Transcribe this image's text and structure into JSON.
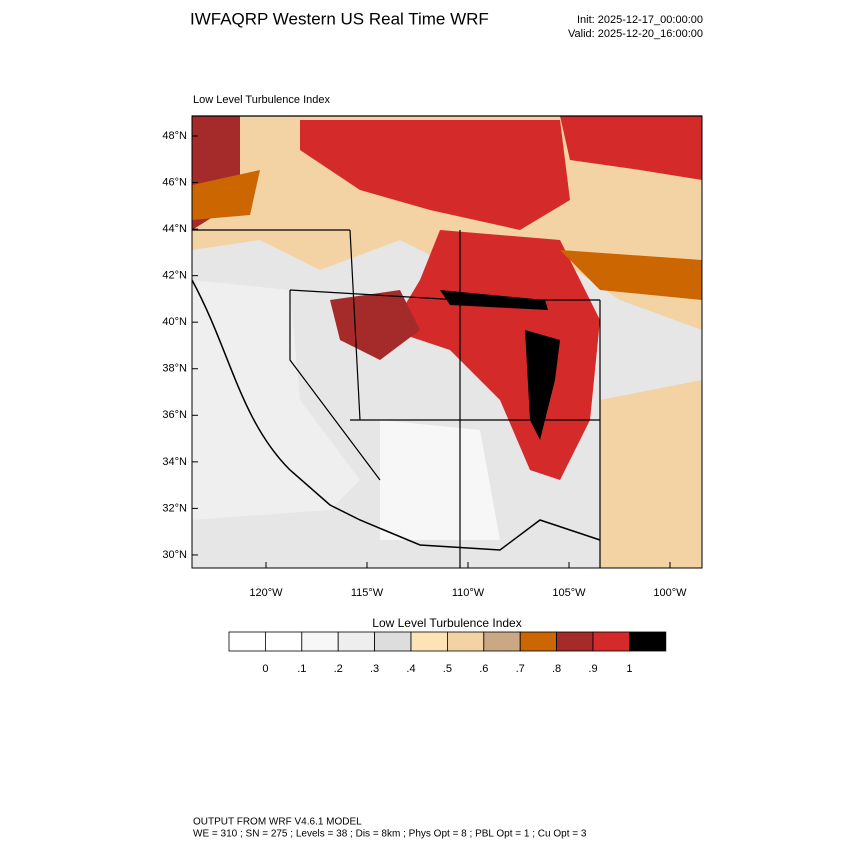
{
  "header": {
    "title": "IWFAQRP Western US Real Time WRF",
    "init": "Init: 2025-12-17_00:00:00",
    "valid": "Valid: 2025-12-20_16:00:00"
  },
  "map": {
    "title": "Low Level Turbulence Index",
    "lat_labels": [
      "48°N",
      "46°N",
      "44°N",
      "42°N",
      "40°N",
      "38°N",
      "36°N",
      "34°N",
      "32°N",
      "30°N"
    ],
    "lon_labels": [
      "120°W",
      "115°W",
      "110°W",
      "105°W",
      "100°W"
    ]
  },
  "colorbar": {
    "title": "Low Level Turbulence Index",
    "colors": [
      "#ffffff",
      "#f7f7f7",
      "#eeeeee",
      "#dddddd",
      "#fde4b6",
      "#f3d2a4",
      "#c9a883",
      "#cc6600",
      "#a52a2a",
      "#d42a2a",
      "#000000"
    ],
    "first_color": "#ffffff",
    "labels": [
      "0",
      ".1",
      ".2",
      ".3",
      ".4",
      ".5",
      ".6",
      ".7",
      ".8",
      ".9",
      "1"
    ]
  },
  "footer": {
    "line1": "OUTPUT FROM WRF V4.6.1 MODEL",
    "line2": "WE = 310 ; SN = 275 ; Levels = 38 ; Dis = 8km ; Phys Opt = 8 ; PBL Opt = 1 ; Cu Opt = 3"
  }
}
